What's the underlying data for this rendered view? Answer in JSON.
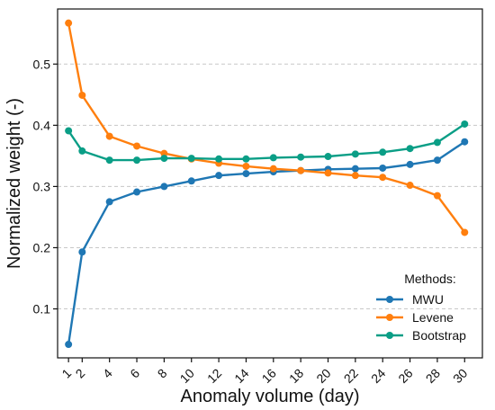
{
  "chart_data": {
    "type": "line",
    "xlabel": "Anomaly volume (day)",
    "ylabel": "Normalized weight (-)",
    "x": [
      1,
      2,
      4,
      6,
      8,
      10,
      12,
      14,
      16,
      18,
      20,
      22,
      24,
      26,
      28,
      30
    ],
    "x_ticks": [
      1,
      2,
      4,
      6,
      8,
      10,
      12,
      14,
      16,
      18,
      20,
      22,
      24,
      26,
      28,
      30
    ],
    "y_ticks": [
      0.1,
      0.2,
      0.3,
      0.4,
      0.5
    ],
    "xlim": [
      0.2,
      31.3
    ],
    "ylim": [
      0.02,
      0.59
    ],
    "grid": "horizontal dashed",
    "legend": {
      "title": "Methods:",
      "placement": "lower-right"
    },
    "series": [
      {
        "name": "MWU",
        "color": "#1f77b4",
        "values": [
          0.042,
          0.193,
          0.275,
          0.291,
          0.3,
          0.309,
          0.318,
          0.321,
          0.324,
          0.326,
          0.328,
          0.329,
          0.33,
          0.336,
          0.343,
          0.373
        ]
      },
      {
        "name": "Levene",
        "color": "#ff7f0e",
        "values": [
          0.567,
          0.449,
          0.382,
          0.366,
          0.354,
          0.345,
          0.338,
          0.333,
          0.329,
          0.326,
          0.322,
          0.318,
          0.315,
          0.302,
          0.285,
          0.225
        ]
      },
      {
        "name": "Bootstrap",
        "color": "#0a9e86",
        "values": [
          0.391,
          0.358,
          0.343,
          0.343,
          0.346,
          0.346,
          0.345,
          0.345,
          0.347,
          0.348,
          0.349,
          0.353,
          0.356,
          0.362,
          0.372,
          0.402
        ]
      }
    ]
  }
}
